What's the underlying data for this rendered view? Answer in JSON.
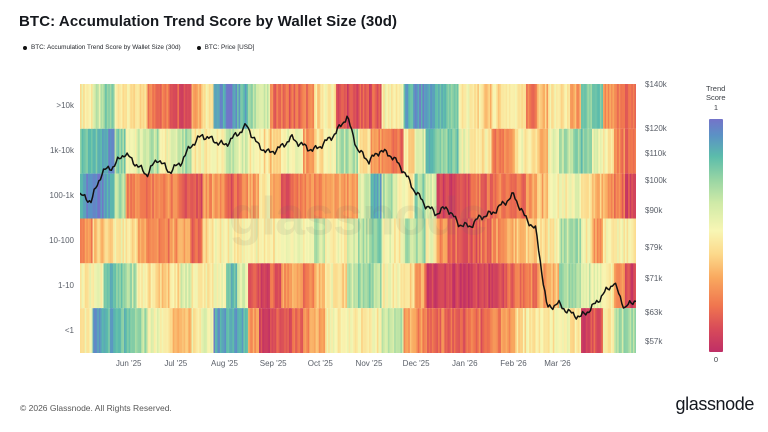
{
  "header": {
    "title": "BTC: Accumulation Trend Score by Wallet Size (30d)",
    "series_legend": [
      {
        "label": "BTC: Accumulation Trend Score by Wallet Size (30d)",
        "marker_color": "#111111"
      },
      {
        "label": "BTC: Price [USD]",
        "marker_color": "#111111"
      }
    ]
  },
  "watermark_text": "glassnode",
  "footer": {
    "copyright": "© 2026 Glassnode. All Rights Reserved.",
    "brand": "glassnode"
  },
  "chart_data": {
    "type": "heatmap",
    "title": "BTC: Accumulation Trend Score by Wallet Size (30d)",
    "subtitle_series": [
      "BTC: Accumulation Trend Score by Wallet Size (30d)",
      "BTC: Price [USD]"
    ],
    "x_axis": {
      "start": "May '25",
      "end": "Apr '26",
      "total_days": 354,
      "ticks": [
        {
          "label": "Jun '25",
          "day": 31
        },
        {
          "label": "Jul '25",
          "day": 61
        },
        {
          "label": "Aug '25",
          "day": 92
        },
        {
          "label": "Sep '25",
          "day": 123
        },
        {
          "label": "Oct '25",
          "day": 153
        },
        {
          "label": "Nov '25",
          "day": 184
        },
        {
          "label": "Dec '25",
          "day": 214
        },
        {
          "label": "Jan '26",
          "day": 245
        },
        {
          "label": "Feb '26",
          "day": 276
        },
        {
          "label": "Mar '26",
          "day": 304
        }
      ]
    },
    "y_axis_left": {
      "meaning": "wallet size cohort (BTC held)",
      "categories": [
        ">10k",
        "1k-10k",
        "100-1k",
        "10-100",
        "1-10",
        "<1"
      ]
    },
    "y_axis_right": {
      "meaning": "BTC price",
      "scale": "log",
      "ylim": [
        54700,
        140000
      ],
      "ticks": [
        {
          "label": "$140k",
          "value": 140000
        },
        {
          "label": "$120k",
          "value": 120000
        },
        {
          "label": "$110k",
          "value": 110000
        },
        {
          "label": "$100k",
          "value": 100000
        },
        {
          "label": "$90k",
          "value": 90000
        },
        {
          "label": "$79k",
          "value": 79000
        },
        {
          "label": "$71k",
          "value": 71000
        },
        {
          "label": "$63k",
          "value": 63000
        },
        {
          "label": "$57k",
          "value": 57000
        }
      ]
    },
    "heatmap": {
      "value_name": "Accumulation Trend Score",
      "value_range": [
        0,
        1
      ],
      "weeks": 50,
      "rows": [
        {
          "wallet": ">10k",
          "weekly_scores": [
            0.5,
            0.62,
            0.75,
            0.5,
            0.45,
            0.4,
            0.22,
            0.2,
            0.15,
            0.12,
            0.35,
            0.5,
            0.9,
            0.95,
            0.85,
            0.7,
            0.6,
            0.2,
            0.18,
            0.18,
            0.2,
            0.45,
            0.48,
            0.12,
            0.1,
            0.12,
            0.15,
            0.5,
            0.5,
            0.85,
            0.92,
            0.9,
            0.82,
            0.78,
            0.5,
            0.45,
            0.4,
            0.45,
            0.5,
            0.48,
            0.2,
            0.35,
            0.48,
            0.45,
            0.3,
            0.75,
            0.78,
            0.25,
            0.2,
            0.18
          ]
        },
        {
          "wallet": "1k-10k",
          "weekly_scores": [
            0.8,
            0.85,
            0.9,
            0.75,
            0.55,
            0.6,
            0.68,
            0.52,
            0.6,
            0.7,
            0.5,
            0.5,
            0.52,
            0.65,
            0.6,
            0.5,
            0.45,
            0.38,
            0.55,
            0.58,
            0.3,
            0.45,
            0.55,
            0.68,
            0.7,
            0.45,
            0.28,
            0.2,
            0.18,
            0.45,
            0.6,
            0.8,
            0.75,
            0.78,
            0.55,
            0.5,
            0.48,
            0.22,
            0.3,
            0.5,
            0.45,
            0.35,
            0.55,
            0.68,
            0.72,
            0.78,
            0.55,
            0.5,
            0.22,
            0.18
          ]
        },
        {
          "wallet": "100-1k",
          "weekly_scores": [
            0.92,
            0.95,
            0.85,
            0.7,
            0.25,
            0.22,
            0.2,
            0.25,
            0.22,
            0.12,
            0.1,
            0.28,
            0.25,
            0.15,
            0.2,
            0.3,
            0.5,
            0.3,
            0.15,
            0.22,
            0.27,
            0.25,
            0.28,
            0.3,
            0.28,
            0.6,
            0.88,
            0.7,
            0.55,
            0.5,
            0.72,
            0.6,
            0.05,
            0.08,
            0.12,
            0.2,
            0.18,
            0.22,
            0.15,
            0.18,
            0.3,
            0.35,
            0.48,
            0.5,
            0.55,
            0.45,
            0.38,
            0.3,
            0.2,
            0.1
          ]
        },
        {
          "wallet": "10-100",
          "weekly_scores": [
            0.25,
            0.4,
            0.45,
            0.5,
            0.45,
            0.32,
            0.28,
            0.22,
            0.28,
            0.3,
            0.15,
            0.45,
            0.5,
            0.5,
            0.5,
            0.52,
            0.5,
            0.48,
            0.5,
            0.52,
            0.5,
            0.65,
            0.5,
            0.5,
            0.6,
            0.7,
            0.75,
            0.55,
            0.5,
            0.68,
            0.7,
            0.52,
            0.25,
            0.18,
            0.15,
            0.15,
            0.2,
            0.28,
            0.32,
            0.38,
            0.4,
            0.45,
            0.5,
            0.68,
            0.7,
            0.5,
            0.3,
            0.48,
            0.5,
            0.48
          ]
        },
        {
          "wallet": "1-10",
          "weekly_scores": [
            0.5,
            0.55,
            0.82,
            0.75,
            0.7,
            0.5,
            0.45,
            0.42,
            0.45,
            0.6,
            0.5,
            0.5,
            0.52,
            0.85,
            0.6,
            0.1,
            0.08,
            0.15,
            0.28,
            0.3,
            0.22,
            0.35,
            0.5,
            0.4,
            0.65,
            0.72,
            0.7,
            0.5,
            0.5,
            0.45,
            0.3,
            0.05,
            0.05,
            0.06,
            0.05,
            0.08,
            0.06,
            0.1,
            0.18,
            0.2,
            0.22,
            0.3,
            0.35,
            0.72,
            0.68,
            0.6,
            0.55,
            0.5,
            0.3,
            0.08
          ]
        },
        {
          "wallet": "<1",
          "weekly_scores": [
            0.5,
            0.88,
            0.85,
            0.8,
            0.75,
            0.7,
            0.55,
            0.5,
            0.4,
            0.32,
            0.5,
            0.55,
            0.9,
            0.88,
            0.85,
            0.3,
            0.08,
            0.12,
            0.15,
            0.18,
            0.28,
            0.3,
            0.5,
            0.52,
            0.5,
            0.48,
            0.5,
            0.68,
            0.65,
            0.3,
            0.25,
            0.18,
            0.2,
            0.15,
            0.15,
            0.18,
            0.15,
            0.25,
            0.28,
            0.45,
            0.5,
            0.45,
            0.48,
            0.5,
            0.48,
            0.1,
            0.12,
            0.5,
            0.7,
            0.72
          ]
        }
      ]
    },
    "price_series": {
      "name": "BTC: Price [USD]",
      "unit": "USD",
      "line_color": "#111111",
      "weekly_values_usd": [
        95000,
        93000,
        103000,
        105000,
        110000,
        106000,
        102000,
        108000,
        103000,
        106000,
        113000,
        117000,
        115000,
        113000,
        117000,
        121000,
        113000,
        110000,
        112000,
        116000,
        113000,
        111000,
        114000,
        118000,
        125000,
        111000,
        107000,
        111000,
        109000,
        104000,
        97000,
        92000,
        89000,
        91000,
        86000,
        85000,
        88000,
        89000,
        92000,
        95000,
        88000,
        84000,
        64000,
        65000,
        63000,
        62000,
        64000,
        67000,
        70000,
        64000,
        66000
      ]
    },
    "colormap": {
      "label": "Trend Score",
      "max_label": "1",
      "min_label": "0",
      "stops": [
        {
          "t": 0.0,
          "color": "#bf2f66"
        },
        {
          "t": 0.1,
          "color": "#d84b59"
        },
        {
          "t": 0.2,
          "color": "#f0764f"
        },
        {
          "t": 0.32,
          "color": "#f9a95f"
        },
        {
          "t": 0.42,
          "color": "#fcd98b"
        },
        {
          "t": 0.52,
          "color": "#f8f6b4"
        },
        {
          "t": 0.64,
          "color": "#cfeaa7"
        },
        {
          "t": 0.74,
          "color": "#98d5a4"
        },
        {
          "t": 0.84,
          "color": "#5bbcab"
        },
        {
          "t": 0.93,
          "color": "#5b92c5"
        },
        {
          "t": 1.0,
          "color": "#7473c9"
        }
      ]
    }
  }
}
